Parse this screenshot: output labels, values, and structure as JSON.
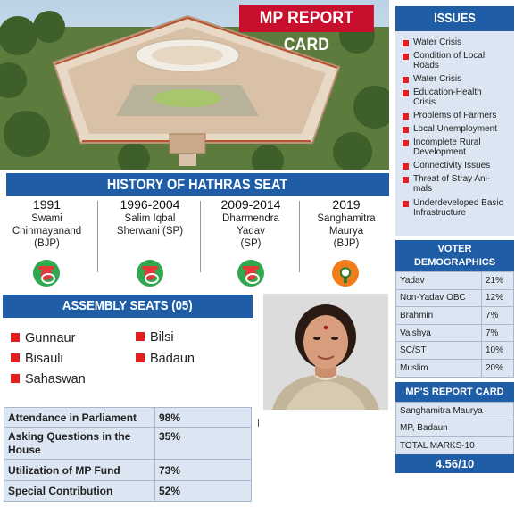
{
  "header": {
    "title": "MP REPORT CARD"
  },
  "history": {
    "title": "HISTORY OF HATHRAS SEAT",
    "entries": [
      {
        "year": "1991",
        "name_lines": [
          "Swami",
          "Chinmayanand",
          "(BJP)"
        ],
        "party_logo": "sp-cycle-icon"
      },
      {
        "year": "1996-2004",
        "name_lines": [
          "Salim Iqbal",
          "Sherwani (SP)"
        ],
        "party_logo": "sp-cycle-icon"
      },
      {
        "year": "2009-2014",
        "name_lines": [
          "Dharmendra",
          "Yadav",
          "(SP)"
        ],
        "party_logo": "sp-cycle-icon"
      },
      {
        "year": "2019",
        "name_lines": [
          "Sanghamitra",
          "Maurya",
          "(BJP)"
        ],
        "party_logo": "bjp-lotus-icon"
      }
    ]
  },
  "assembly": {
    "title": "ASSEMBLY SEATS (05)",
    "seats": [
      "Gunnaur",
      "Bisauli",
      "Sahaswan",
      "Bilsi",
      "Badaun"
    ]
  },
  "performance": {
    "rows": [
      {
        "label": "Attendance in Parliament",
        "value": "98%"
      },
      {
        "label_lines": [
          "Asking Questions in the",
          "House"
        ],
        "value": "35%"
      },
      {
        "label": "Utilization of MP Fund",
        "value": "73%"
      },
      {
        "label": "Special Contribution",
        "value": "52%"
      }
    ]
  },
  "issues": {
    "title": "ISSUES",
    "items": [
      [
        "Water Crisis"
      ],
      [
        "Condition of Local",
        "Roads"
      ],
      [
        "Water Crisis"
      ],
      [
        "Education-Health",
        "Crisis"
      ],
      [
        "Problems of Farmers"
      ],
      [
        "Local Unemployment"
      ],
      [
        "Incomplete Rural",
        "Development"
      ],
      [
        "Connectivity Issues"
      ],
      [
        "Threat of Stray Ani-",
        "mals"
      ],
      [
        "Underdeveloped Basic",
        "Infrastructure"
      ]
    ]
  },
  "voter_demographics": {
    "title_lines": [
      "VOTER",
      "DEMOGRAPHICS"
    ],
    "rows": [
      {
        "group": "Yadav",
        "share": "21%"
      },
      {
        "group": "Non-Yadav OBC",
        "share": "12%"
      },
      {
        "group": "Brahmin",
        "share": "7%"
      },
      {
        "group": "Vaishya",
        "share": "7%"
      },
      {
        "group": "SC/ST",
        "share": "10%"
      },
      {
        "group": "Muslim",
        "share": "20%"
      }
    ]
  },
  "report_card": {
    "title": "MP'S REPORT CARD",
    "rows": [
      "Sanghamitra Maurya",
      "MP, Badaun",
      "TOTAL MARKS-10"
    ],
    "score": "4.56/10"
  },
  "colors": {
    "header_red": "#c8102e",
    "panel_blue": "#1f5da6",
    "panel_fill": "#dce6f2",
    "bullet_red": "#e02020"
  }
}
